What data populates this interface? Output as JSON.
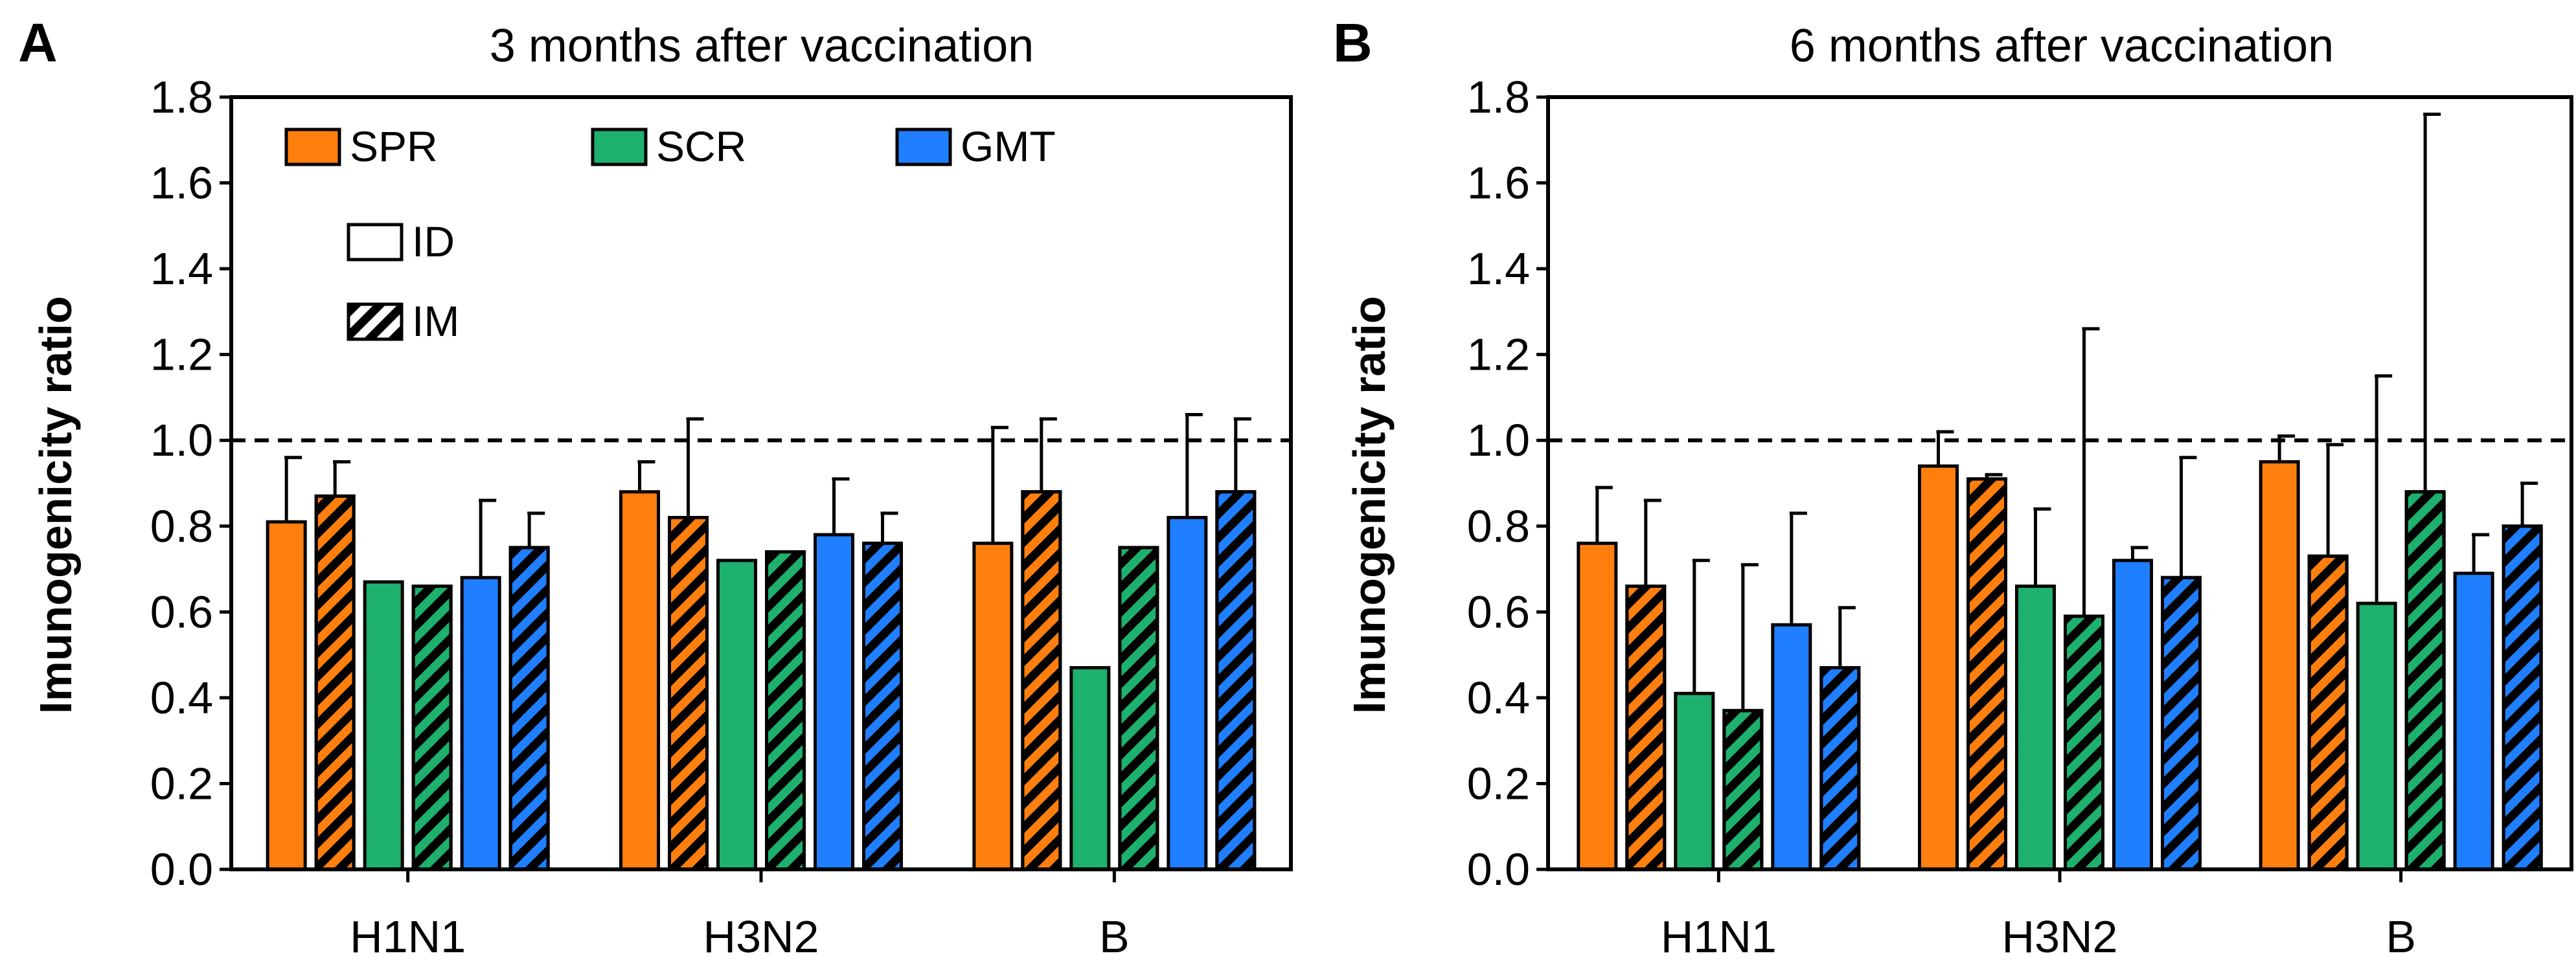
{
  "figure": {
    "legend": {
      "measures": [
        {
          "key": "SPR",
          "label": "SPR",
          "color": "#FF7F0E"
        },
        {
          "key": "SCR",
          "label": "SCR",
          "color": "#1DB16D"
        },
        {
          "key": "GMT",
          "label": "GMT",
          "color": "#1F7FFF"
        }
      ],
      "routes": [
        {
          "key": "ID",
          "label": "ID",
          "pattern": "solid"
        },
        {
          "key": "IM",
          "label": "IM",
          "pattern": "hatched"
        }
      ],
      "placement": "top-left of panel A"
    },
    "reference_line": {
      "y": 1.0,
      "style": "dashed"
    }
  },
  "chart_data": [
    {
      "type": "bar",
      "panel": "A",
      "title": "3 months after vaccination",
      "ylabel": "Imunogenicity ratio",
      "xlabel": "",
      "ylim": [
        0,
        1.8
      ],
      "yticks": [
        "0.0",
        "0.2",
        "0.4",
        "0.6",
        "0.8",
        "1.0",
        "1.2",
        "1.4",
        "1.6",
        "1.8"
      ],
      "categories": [
        "H1N1",
        "H3N2",
        "B"
      ],
      "series": [
        {
          "name": "SPR ID",
          "measure": "SPR",
          "route": "ID",
          "values": [
            0.81,
            0.88,
            0.76
          ],
          "errors": [
            0.15,
            0.07,
            0.27
          ]
        },
        {
          "name": "SPR IM",
          "measure": "SPR",
          "route": "IM",
          "values": [
            0.87,
            0.82,
            0.88
          ],
          "errors": [
            0.08,
            0.23,
            0.17
          ]
        },
        {
          "name": "SCR ID",
          "measure": "SCR",
          "route": "ID",
          "values": [
            0.67,
            0.72,
            0.47
          ],
          "errors": [
            0,
            0,
            0
          ]
        },
        {
          "name": "SCR IM",
          "measure": "SCR",
          "route": "IM",
          "values": [
            0.66,
            0.74,
            0.75
          ],
          "errors": [
            0,
            0,
            0
          ]
        },
        {
          "name": "GMT ID",
          "measure": "GMT",
          "route": "ID",
          "values": [
            0.68,
            0.78,
            0.82
          ],
          "errors": [
            0.18,
            0.13,
            0.24
          ]
        },
        {
          "name": "GMT IM",
          "measure": "GMT",
          "route": "IM",
          "values": [
            0.75,
            0.76,
            0.88
          ],
          "errors": [
            0.08,
            0.07,
            0.17
          ]
        }
      ]
    },
    {
      "type": "bar",
      "panel": "B",
      "title": "6 months after vaccination",
      "ylabel": "Imunogenicity ratio",
      "xlabel": "",
      "ylim": [
        0,
        1.8
      ],
      "yticks": [
        "0.0",
        "0.2",
        "0.4",
        "0.6",
        "0.8",
        "1.0",
        "1.2",
        "1.4",
        "1.6",
        "1.8"
      ],
      "categories": [
        "H1N1",
        "H3N2",
        "B"
      ],
      "series": [
        {
          "name": "SPR ID",
          "measure": "SPR",
          "route": "ID",
          "values": [
            0.76,
            0.94,
            0.95
          ],
          "errors": [
            0.13,
            0.08,
            0.06
          ]
        },
        {
          "name": "SPR IM",
          "measure": "SPR",
          "route": "IM",
          "values": [
            0.66,
            0.91,
            0.73
          ],
          "errors": [
            0.2,
            0.01,
            0.26
          ]
        },
        {
          "name": "SCR ID",
          "measure": "SCR",
          "route": "ID",
          "values": [
            0.41,
            0.66,
            0.62
          ],
          "errors": [
            0.31,
            0.18,
            0.53
          ]
        },
        {
          "name": "SCR IM",
          "measure": "SCR",
          "route": "IM",
          "values": [
            0.37,
            0.59,
            0.88
          ],
          "errors": [
            0.34,
            0.67,
            0.88
          ]
        },
        {
          "name": "GMT ID",
          "measure": "GMT",
          "route": "ID",
          "values": [
            0.57,
            0.72,
            0.69
          ],
          "errors": [
            0.26,
            0.03,
            0.09
          ]
        },
        {
          "name": "GMT IM",
          "measure": "GMT",
          "route": "IM",
          "values": [
            0.47,
            0.68,
            0.8
          ],
          "errors": [
            0.14,
            0.28,
            0.1
          ]
        }
      ]
    }
  ]
}
